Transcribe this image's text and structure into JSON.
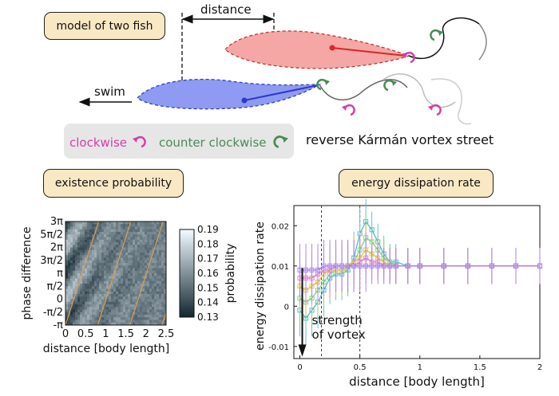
{
  "labels": {
    "model_tag": "model of two fish",
    "distance_label": "distance",
    "swim_label": "swim",
    "clockwise": "clockwise",
    "counter_clockwise": "counter clockwise",
    "vortex_street": "reverse Kármán vortex street",
    "existence_tag": "existence probability",
    "energy_tag": "energy dissipation rate",
    "strength_line1": "strength",
    "strength_line2": "of vortex"
  },
  "colors": {
    "clockwise": "#d63ea6",
    "counter_clockwise": "#4a8a55",
    "red_fish": "#f2a0a0",
    "blue_fish": "#8c96f0",
    "tag_bg": "#f9e8c4"
  },
  "chart_data": [
    {
      "type": "heatmap",
      "title": "existence probability",
      "xlabel": "distance [body length]",
      "ylabel": "phase difference",
      "x_ticks": [
        "0",
        "0.5",
        "1",
        "1.5",
        "2",
        "2.5"
      ],
      "y_ticks": [
        "3π",
        "5π/2",
        "2π",
        "3π/2",
        "π",
        "π/2",
        "0",
        "-π/2",
        "-π"
      ],
      "xlim": [
        0,
        2.5
      ],
      "ylim": [
        "-π",
        "3π"
      ],
      "colorbar": {
        "label": "probability",
        "ticks": [
          "0.19",
          "0.18",
          "0.17",
          "0.16",
          "0.15",
          "0.14",
          "0.13"
        ],
        "range": [
          0.13,
          0.19
        ]
      }
    },
    {
      "type": "line",
      "title": "energy dissipation rate",
      "xlabel": "distance  [body length]",
      "ylabel": "energy dissipation rate",
      "x_ticks": [
        "0",
        "0.5",
        "1",
        "1.5",
        "2"
      ],
      "y_ticks": [
        "0.02",
        "0.01",
        "0",
        "-0.01"
      ],
      "xlim": [
        -0.05,
        2.0
      ],
      "ylim": [
        -0.013,
        0.025
      ],
      "reference_lines_x": [
        0.18,
        0.5
      ],
      "annotation": "strength of vortex",
      "series": [
        {
          "color": "#5bb7c9",
          "x": [
            0,
            0.05,
            0.1,
            0.15,
            0.2,
            0.25,
            0.3,
            0.35,
            0.4,
            0.45,
            0.5,
            0.55,
            0.6,
            0.65,
            0.7,
            0.75,
            0.8,
            0.9,
            1.0,
            1.2,
            1.4,
            1.6,
            1.8,
            2.0
          ],
          "values": [
            -0.001,
            -0.003,
            -0.001,
            0.001,
            0.004,
            0.007,
            0.008,
            0.008,
            0.009,
            0.012,
            0.018,
            0.021,
            0.019,
            0.016,
            0.013,
            0.011,
            0.011,
            0.01,
            0.01,
            0.01,
            0.01,
            0.01,
            0.01,
            0.01
          ]
        },
        {
          "color": "#7fd18a",
          "x": [
            0,
            0.05,
            0.1,
            0.15,
            0.2,
            0.25,
            0.3,
            0.35,
            0.4,
            0.45,
            0.5,
            0.55,
            0.6,
            0.65,
            0.7,
            0.75,
            0.8,
            0.9,
            1.0,
            1.2,
            1.4,
            1.6,
            1.8,
            2.0
          ],
          "values": [
            0.002,
            0.001,
            0.002,
            0.004,
            0.006,
            0.008,
            0.009,
            0.009,
            0.009,
            0.011,
            0.014,
            0.017,
            0.016,
            0.014,
            0.012,
            0.011,
            0.01,
            0.01,
            0.01,
            0.01,
            0.01,
            0.01,
            0.01,
            0.01
          ]
        },
        {
          "color": "#e0c24a",
          "x": [
            0,
            0.05,
            0.1,
            0.15,
            0.2,
            0.25,
            0.3,
            0.35,
            0.4,
            0.45,
            0.5,
            0.55,
            0.6,
            0.65,
            0.7,
            0.75,
            0.8,
            0.9,
            1.0,
            1.2,
            1.4,
            1.6,
            1.8,
            2.0
          ],
          "values": [
            0.005,
            0.004,
            0.005,
            0.006,
            0.008,
            0.009,
            0.009,
            0.009,
            0.01,
            0.011,
            0.012,
            0.014,
            0.013,
            0.012,
            0.011,
            0.01,
            0.01,
            0.01,
            0.01,
            0.01,
            0.01,
            0.01,
            0.01,
            0.01
          ]
        },
        {
          "color": "#e07fc4",
          "x": [
            0,
            0.05,
            0.1,
            0.15,
            0.2,
            0.25,
            0.3,
            0.35,
            0.4,
            0.45,
            0.5,
            0.55,
            0.6,
            0.65,
            0.7,
            0.75,
            0.8,
            0.9,
            1.0,
            1.2,
            1.4,
            1.6,
            1.8,
            2.0
          ],
          "values": [
            0.007,
            0.007,
            0.007,
            0.008,
            0.009,
            0.009,
            0.01,
            0.01,
            0.01,
            0.01,
            0.011,
            0.012,
            0.011,
            0.011,
            0.01,
            0.01,
            0.01,
            0.01,
            0.01,
            0.01,
            0.01,
            0.01,
            0.01,
            0.01
          ]
        },
        {
          "color": "#a77ce8",
          "x": [
            0,
            0.05,
            0.1,
            0.15,
            0.2,
            0.25,
            0.3,
            0.35,
            0.4,
            0.45,
            0.5,
            0.55,
            0.6,
            0.65,
            0.7,
            0.75,
            0.8,
            0.9,
            1.0,
            1.2,
            1.4,
            1.6,
            1.8,
            2.0
          ],
          "values": [
            0.009,
            0.009,
            0.009,
            0.009,
            0.01,
            0.01,
            0.01,
            0.01,
            0.01,
            0.01,
            0.01,
            0.01,
            0.01,
            0.01,
            0.01,
            0.01,
            0.01,
            0.01,
            0.01,
            0.01,
            0.01,
            0.01,
            0.01,
            0.01
          ]
        }
      ]
    }
  ]
}
